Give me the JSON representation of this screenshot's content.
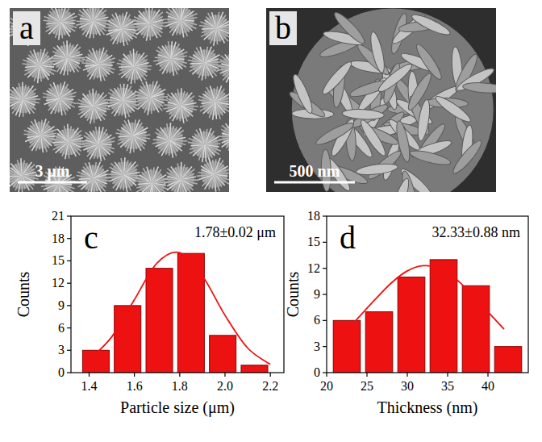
{
  "images": [
    {
      "panel": "a",
      "scale_bar": "3 μm"
    },
    {
      "panel": "b",
      "scale_bar": "500 nm"
    }
  ],
  "chart_data": [
    {
      "type": "histogram",
      "panel": "c",
      "annotation": "1.78±0.02 μm",
      "xlabel": "Particle size (μm)",
      "ylabel": "Counts",
      "bins": [
        1.36,
        1.5,
        1.64,
        1.78,
        1.92,
        2.06,
        2.2
      ],
      "counts": [
        3,
        9,
        14,
        16,
        5,
        1
      ],
      "color": "#ee1111",
      "fit": {
        "x": [
          1.4,
          1.5,
          1.6,
          1.7,
          1.8,
          1.9,
          2.0,
          2.1,
          2.2
        ],
        "values": [
          1.7,
          4.8,
          9.8,
          14.7,
          16.1,
          13.0,
          7.7,
          3.3,
          1.1
        ],
        "color": "#ee1111",
        "line_style": "solid"
      },
      "xlim": [
        1.32,
        2.26
      ],
      "xticks": [
        1.4,
        1.6,
        1.8,
        {
          "value": 2,
          "label": "2.0"
        },
        2.2
      ],
      "ylim": [
        0,
        21
      ],
      "yticks": [
        0,
        3,
        6,
        9,
        12,
        15,
        18,
        21
      ]
    },
    {
      "type": "histogram",
      "panel": "d",
      "annotation": "32.33±0.88 nm",
      "xlabel": "Thickness (nm)",
      "ylabel": "Counts",
      "bins": [
        20.5,
        24.5,
        28.5,
        32.5,
        36.5,
        40.5,
        44.5
      ],
      "counts": [
        6,
        7,
        11,
        13,
        10,
        3
      ],
      "color": "#ee1111",
      "fit": {
        "x": [
          22,
          24,
          26,
          28,
          30,
          32,
          34,
          36,
          38,
          40,
          42
        ],
        "values": [
          4.4,
          6.4,
          8.4,
          10.3,
          11.7,
          12.3,
          12.0,
          10.8,
          9.0,
          7.0,
          5.0
        ],
        "color": "#ee1111",
        "line_style": "solid"
      },
      "xlim": [
        20,
        45
      ],
      "xticks": [
        20,
        25,
        30,
        35,
        40
      ],
      "ylim": [
        0,
        18
      ],
      "yticks": [
        0,
        3,
        6,
        9,
        12,
        15,
        18
      ]
    }
  ]
}
